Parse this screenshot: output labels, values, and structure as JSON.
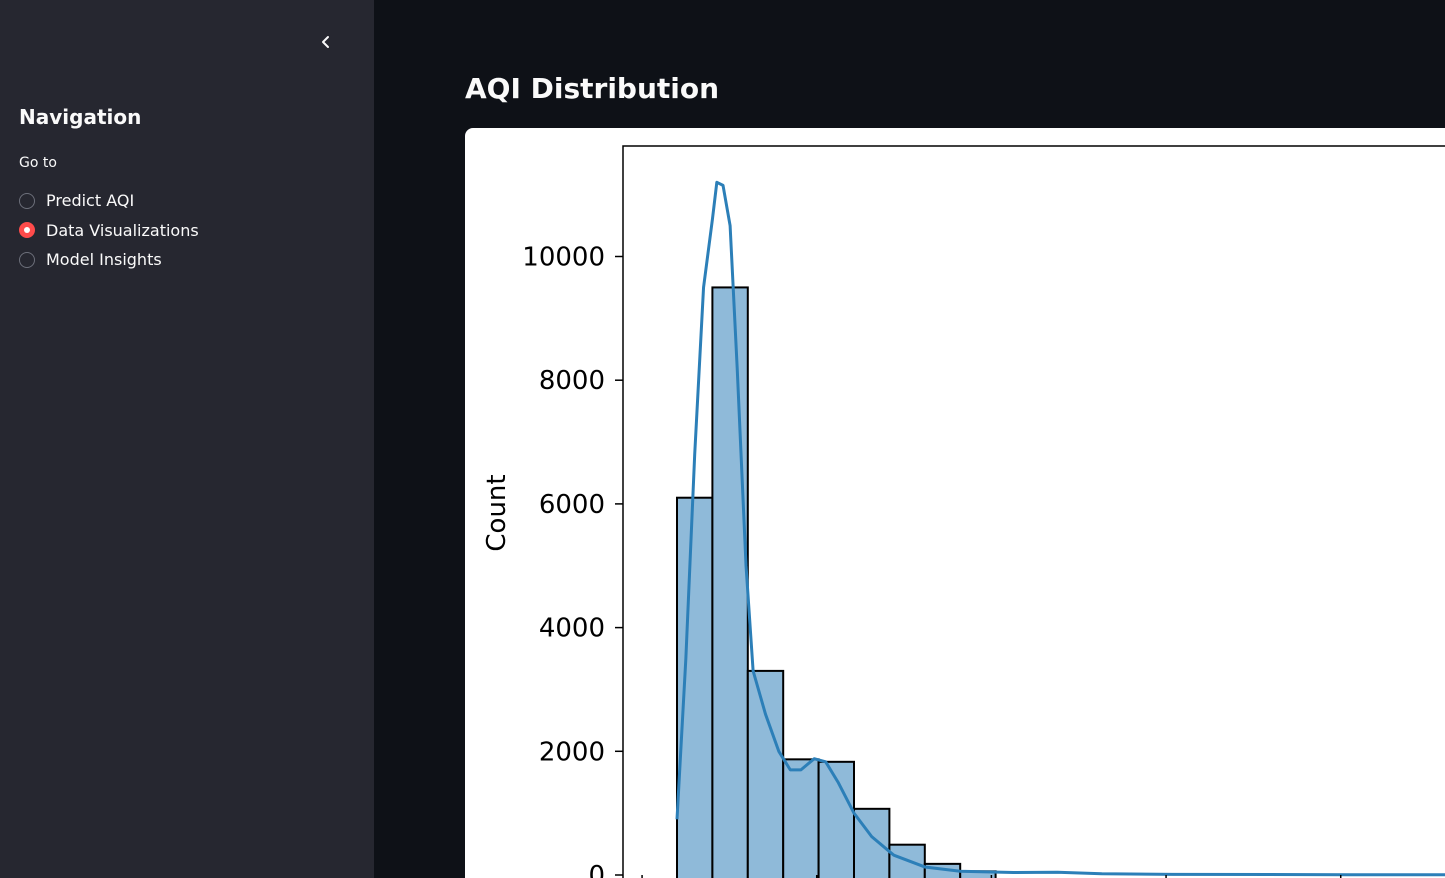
{
  "sidebar": {
    "collapse_icon": "chevron-left-icon",
    "title": "Navigation",
    "radio_label": "Go to",
    "options": [
      {
        "label": "Predict AQI",
        "checked": false
      },
      {
        "label": "Data Visualizations",
        "checked": true
      },
      {
        "label": "Model Insights",
        "checked": false
      }
    ],
    "accent_color": "#ff4b4b"
  },
  "main": {
    "title": "AQI Distribution"
  },
  "chart_data": {
    "type": "bar",
    "ylabel": "Count",
    "xlim": [
      0,
      1700
    ],
    "ylim": [
      0,
      11700
    ],
    "yticks": [
      0,
      2000,
      4000,
      6000,
      8000,
      10000
    ],
    "bar_color": "#8fbad9",
    "kde_color": "#2c7fb8",
    "bins": [
      {
        "x0": 0,
        "x1": 40,
        "count": 0
      },
      {
        "x0": 40,
        "x1": 80,
        "count": 6100
      },
      {
        "x0": 80,
        "x1": 120,
        "count": 9500
      },
      {
        "x0": 120,
        "x1": 160,
        "count": 3300
      },
      {
        "x0": 160,
        "x1": 200,
        "count": 1870
      },
      {
        "x0": 200,
        "x1": 240,
        "count": 1830
      },
      {
        "x0": 240,
        "x1": 280,
        "count": 1070
      },
      {
        "x0": 280,
        "x1": 320,
        "count": 490
      },
      {
        "x0": 320,
        "x1": 360,
        "count": 180
      },
      {
        "x0": 360,
        "x1": 400,
        "count": 60
      }
    ],
    "kde": [
      [
        40,
        900
      ],
      [
        50,
        3500
      ],
      [
        60,
        6800
      ],
      [
        70,
        9500
      ],
      [
        80,
        10600
      ],
      [
        85,
        11200
      ],
      [
        92,
        11150
      ],
      [
        100,
        10500
      ],
      [
        108,
        8200
      ],
      [
        118,
        5000
      ],
      [
        126,
        3300
      ],
      [
        140,
        2600
      ],
      [
        155,
        2000
      ],
      [
        168,
        1700
      ],
      [
        180,
        1700
      ],
      [
        195,
        1880
      ],
      [
        208,
        1830
      ],
      [
        222,
        1500
      ],
      [
        240,
        1000
      ],
      [
        260,
        620
      ],
      [
        285,
        320
      ],
      [
        320,
        130
      ],
      [
        360,
        60
      ],
      [
        420,
        40
      ],
      [
        470,
        45
      ],
      [
        520,
        20
      ],
      [
        600,
        10
      ],
      [
        800,
        5
      ],
      [
        1000,
        5
      ],
      [
        1300,
        8
      ],
      [
        1700,
        2
      ]
    ]
  }
}
